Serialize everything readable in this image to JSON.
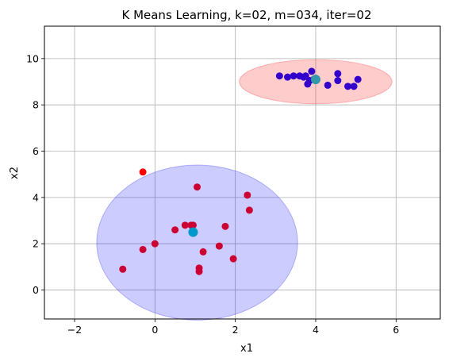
{
  "chart_data": {
    "type": "scatter",
    "title": "K Means Learning, k=02, m=034, iter=02",
    "xlabel": "x1",
    "ylabel": "x2",
    "xlim": [
      -2.75,
      7.1
    ],
    "ylim": [
      -1.25,
      11.4
    ],
    "xticks": [
      -2,
      0,
      2,
      4,
      6
    ],
    "yticks": [
      0,
      2,
      4,
      6,
      8,
      10
    ],
    "xtick_labels": [
      "−2",
      "0",
      "2",
      "4",
      "6"
    ],
    "ytick_labels": [
      "0",
      "2",
      "4",
      "6",
      "8",
      "10"
    ],
    "grid": true,
    "colors": {
      "cluster1_points": "#cc0033",
      "cluster2_points": "#3300cc",
      "outlier_point": "#ff0000",
      "centroid1": "#0099cc",
      "centroid2": "#3399aa",
      "ellipse1_fill": "#0000ff",
      "ellipse2_fill": "#ff0000"
    },
    "ellipses": [
      {
        "cx": 1.05,
        "cy": 2.05,
        "rx": 2.5,
        "ry": 3.35,
        "color": "#0000ff"
      },
      {
        "cx": 4.0,
        "cy": 9.0,
        "rx": 1.9,
        "ry": 0.95,
        "color": "#ff0000"
      }
    ],
    "series": [
      {
        "color": "#cc0033",
        "points": [
          [
            -0.8,
            0.9
          ],
          [
            -0.3,
            1.75
          ],
          [
            0.0,
            2.0
          ],
          [
            0.5,
            2.6
          ],
          [
            0.75,
            2.8
          ],
          [
            0.9,
            2.8
          ],
          [
            0.95,
            2.8
          ],
          [
            1.05,
            4.45
          ],
          [
            1.1,
            0.8
          ],
          [
            1.1,
            0.95
          ],
          [
            1.2,
            1.65
          ],
          [
            1.6,
            1.9
          ],
          [
            1.75,
            2.75
          ],
          [
            1.95,
            1.35
          ],
          [
            2.3,
            4.1
          ],
          [
            2.35,
            3.45
          ]
        ]
      },
      {
        "color": "#ff0000",
        "points": [
          [
            -0.3,
            5.1
          ]
        ]
      },
      {
        "color": "#3300cc",
        "points": [
          [
            3.1,
            9.25
          ],
          [
            3.3,
            9.2
          ],
          [
            3.45,
            9.25
          ],
          [
            3.6,
            9.25
          ],
          [
            3.7,
            9.2
          ],
          [
            3.75,
            9.25
          ],
          [
            3.8,
            8.9
          ],
          [
            3.85,
            9.05
          ],
          [
            3.9,
            9.45
          ],
          [
            3.95,
            9.1
          ],
          [
            4.0,
            9.15
          ],
          [
            4.3,
            8.85
          ],
          [
            4.55,
            9.05
          ],
          [
            4.55,
            9.35
          ],
          [
            4.8,
            8.8
          ],
          [
            4.95,
            8.8
          ],
          [
            5.05,
            9.1
          ]
        ]
      }
    ],
    "centroids": [
      {
        "x": 0.95,
        "y": 2.5,
        "color": "#0099cc"
      },
      {
        "x": 4.0,
        "y": 9.1,
        "color": "#3399aa"
      }
    ]
  }
}
